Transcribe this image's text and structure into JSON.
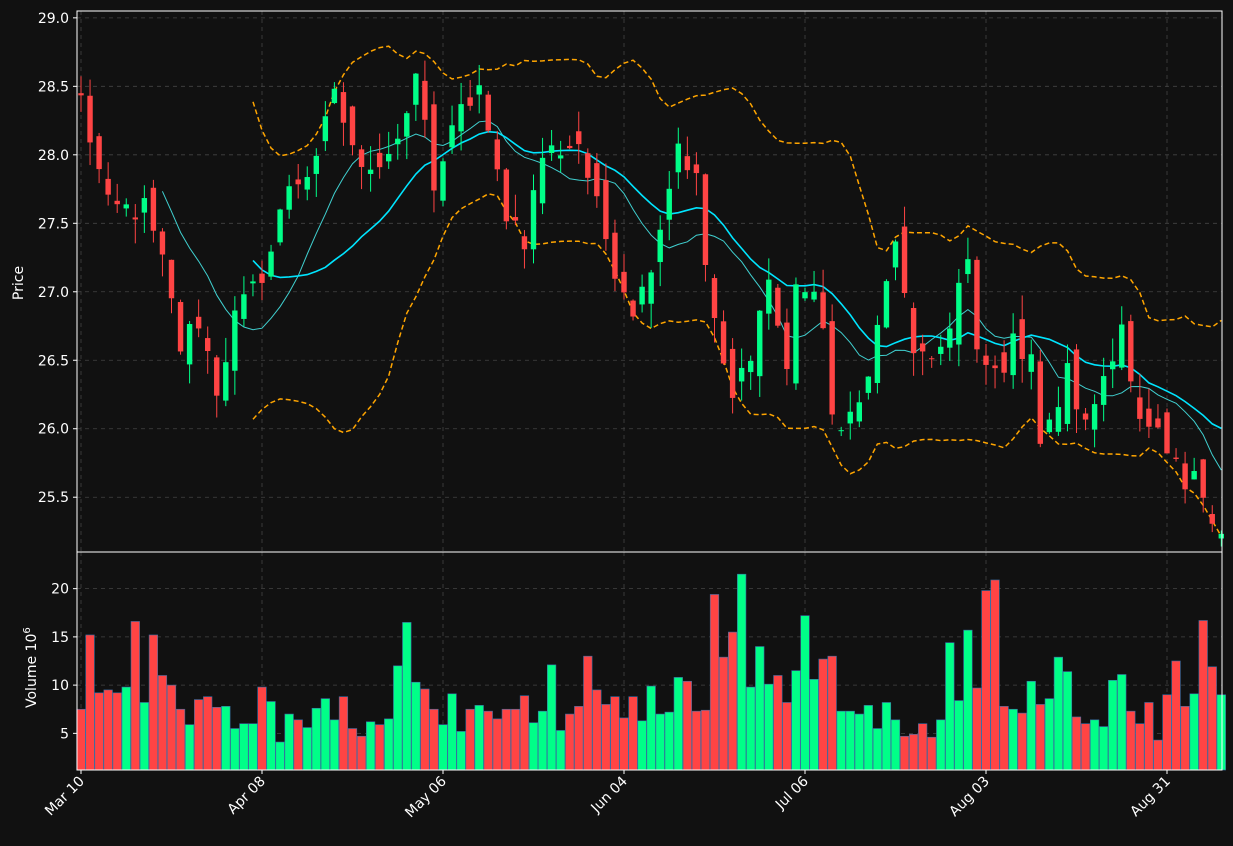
{
  "chart_data": {
    "type": "candlestick",
    "colors": {
      "background": "#111111",
      "up": "#00ff88",
      "down": "#ff4444",
      "ma_short": "#40d0d0",
      "ma_long": "#00e5ff",
      "bands": "#ffa500",
      "grid": "#444444",
      "text": "#ffffff"
    },
    "price_panel": {
      "ylabel": "Price",
      "ylim": [
        25.1,
        29.05
      ],
      "yticks": [
        "25.5",
        "26.0",
        "26.5",
        "27.0",
        "27.5",
        "28.0",
        "28.5",
        "29.0"
      ],
      "ytick_values": [
        25.5,
        26.0,
        26.5,
        27.0,
        27.5,
        28.0,
        28.5,
        29.0
      ],
      "grid": true
    },
    "volume_panel": {
      "ylabel": "Volume",
      "ylabel_exponent": "10",
      "ylabel_exponent_power": "6",
      "ylim": [
        1.2,
        23.8
      ],
      "yticks": [
        "5",
        "10",
        "15",
        "20"
      ],
      "ytick_values": [
        5,
        10,
        15,
        20
      ],
      "grid": true
    },
    "xticks": [
      {
        "index": 0,
        "label": "Mar 10"
      },
      {
        "index": 20,
        "label": "Apr 08"
      },
      {
        "index": 40,
        "label": "May 06"
      },
      {
        "index": 60,
        "label": "Jun 04"
      },
      {
        "index": 80,
        "label": "Jul 06"
      },
      {
        "index": 100,
        "label": "Aug 03"
      },
      {
        "index": 120,
        "label": "Aug 31"
      }
    ],
    "close_anchors": [
      [
        0,
        28.4
      ],
      [
        3,
        27.6
      ],
      [
        7,
        27.6
      ],
      [
        9,
        27.2
      ],
      [
        11,
        26.6
      ],
      [
        13,
        26.8
      ],
      [
        15,
        26.3
      ],
      [
        17,
        26.8
      ],
      [
        19,
        27.0
      ],
      [
        21,
        27.3
      ],
      [
        23,
        27.8
      ],
      [
        26,
        27.9
      ],
      [
        28,
        28.5
      ],
      [
        30,
        28.0
      ],
      [
        33,
        27.95
      ],
      [
        36,
        28.2
      ],
      [
        37,
        28.6
      ],
      [
        39,
        27.8
      ],
      [
        42,
        28.3
      ],
      [
        44,
        28.5
      ],
      [
        45,
        28.1
      ],
      [
        47,
        27.6
      ],
      [
        49,
        27.4
      ],
      [
        51,
        28.0
      ],
      [
        55,
        28.1
      ],
      [
        57,
        27.6
      ],
      [
        59,
        27.2
      ],
      [
        61,
        26.9
      ],
      [
        62,
        27.0
      ],
      [
        64,
        27.5
      ],
      [
        66,
        28.1
      ],
      [
        68,
        27.8
      ],
      [
        69,
        27.2
      ],
      [
        71,
        26.4
      ],
      [
        72,
        26.2
      ],
      [
        74,
        26.6
      ],
      [
        76,
        27.1
      ],
      [
        78,
        26.4
      ],
      [
        79,
        27.1
      ],
      [
        82,
        26.8
      ],
      [
        83,
        26.1
      ],
      [
        84,
        25.9
      ],
      [
        86,
        26.3
      ],
      [
        87,
        26.35
      ],
      [
        89,
        27.1
      ],
      [
        90,
        27.3
      ],
      [
        92,
        26.6
      ],
      [
        94,
        26.4
      ],
      [
        96,
        26.8
      ],
      [
        97,
        27.05
      ],
      [
        98,
        27.2
      ],
      [
        99,
        26.5
      ],
      [
        101,
        26.4
      ],
      [
        103,
        26.6
      ],
      [
        105,
        26.6
      ],
      [
        106,
        25.9
      ],
      [
        107,
        26.0
      ],
      [
        109,
        26.4
      ],
      [
        111,
        26.0
      ],
      [
        113,
        26.4
      ],
      [
        115,
        26.8
      ],
      [
        116,
        26.3
      ],
      [
        117,
        26.0
      ],
      [
        119,
        25.9
      ],
      [
        121,
        25.7
      ],
      [
        122,
        25.6
      ],
      [
        123,
        25.8
      ],
      [
        125,
        25.3
      ],
      [
        126,
        25.2
      ]
    ],
    "volume_anchors": [
      [
        0,
        7.5
      ],
      [
        1,
        15.2
      ],
      [
        2,
        9.2
      ],
      [
        3,
        9.5
      ],
      [
        4,
        9.2
      ],
      [
        5,
        9.8
      ],
      [
        6,
        16.6
      ],
      [
        7,
        8.2
      ],
      [
        8,
        15.2
      ],
      [
        9,
        11.0
      ],
      [
        10,
        10.0
      ],
      [
        11,
        7.5
      ],
      [
        12,
        5.9
      ],
      [
        13,
        8.5
      ],
      [
        14,
        8.8
      ],
      [
        15,
        7.7
      ],
      [
        16,
        7.8
      ],
      [
        17,
        5.5
      ],
      [
        18,
        6.0
      ],
      [
        19,
        6.0
      ],
      [
        20,
        9.8
      ],
      [
        21,
        8.3
      ],
      [
        22,
        4.1
      ],
      [
        23,
        7.0
      ],
      [
        24,
        6.4
      ],
      [
        25,
        5.6
      ],
      [
        26,
        7.6
      ],
      [
        27,
        8.6
      ],
      [
        28,
        6.4
      ],
      [
        29,
        8.8
      ],
      [
        30,
        5.5
      ],
      [
        31,
        4.7
      ],
      [
        32,
        6.2
      ],
      [
        33,
        5.9
      ],
      [
        34,
        6.5
      ],
      [
        35,
        12.0
      ],
      [
        36,
        16.5
      ],
      [
        37,
        10.3
      ],
      [
        38,
        9.6
      ],
      [
        39,
        7.5
      ],
      [
        40,
        5.9
      ],
      [
        41,
        9.1
      ],
      [
        42,
        5.2
      ],
      [
        43,
        7.5
      ],
      [
        44,
        7.9
      ],
      [
        45,
        7.3
      ],
      [
        46,
        6.5
      ],
      [
        47,
        7.5
      ],
      [
        48,
        7.5
      ],
      [
        49,
        8.9
      ],
      [
        50,
        6.1
      ],
      [
        51,
        7.3
      ],
      [
        52,
        12.1
      ],
      [
        53,
        5.3
      ],
      [
        54,
        7.0
      ],
      [
        55,
        7.8
      ],
      [
        56,
        13.0
      ],
      [
        57,
        9.5
      ],
      [
        58,
        8.0
      ],
      [
        59,
        8.8
      ],
      [
        60,
        6.6
      ],
      [
        61,
        8.8
      ],
      [
        62,
        6.3
      ],
      [
        63,
        9.9
      ],
      [
        64,
        7.0
      ],
      [
        65,
        7.2
      ],
      [
        66,
        10.8
      ],
      [
        67,
        10.4
      ],
      [
        68,
        7.3
      ],
      [
        69,
        7.4
      ],
      [
        70,
        19.4
      ],
      [
        71,
        12.9
      ],
      [
        72,
        15.5
      ],
      [
        73,
        21.5
      ],
      [
        74,
        9.8
      ],
      [
        75,
        14.0
      ],
      [
        76,
        10.1
      ],
      [
        77,
        11.0
      ],
      [
        78,
        8.2
      ],
      [
        79,
        11.5
      ],
      [
        80,
        17.2
      ],
      [
        81,
        10.6
      ],
      [
        82,
        12.7
      ],
      [
        83,
        13.0
      ],
      [
        84,
        7.3
      ],
      [
        85,
        7.3
      ],
      [
        86,
        7.0
      ],
      [
        87,
        7.9
      ],
      [
        88,
        5.5
      ],
      [
        89,
        8.2
      ],
      [
        90,
        6.4
      ],
      [
        91,
        4.7
      ],
      [
        92,
        4.9
      ],
      [
        93,
        6.0
      ],
      [
        94,
        4.6
      ],
      [
        95,
        6.4
      ],
      [
        96,
        14.4
      ],
      [
        97,
        8.4
      ],
      [
        98,
        15.7
      ],
      [
        99,
        9.7
      ],
      [
        100,
        19.8
      ],
      [
        101,
        20.9
      ],
      [
        102,
        7.8
      ],
      [
        103,
        7.5
      ],
      [
        104,
        7.1
      ],
      [
        105,
        10.4
      ],
      [
        106,
        8.0
      ],
      [
        107,
        8.6
      ],
      [
        108,
        12.9
      ],
      [
        109,
        11.4
      ],
      [
        110,
        6.7
      ],
      [
        111,
        6.0
      ],
      [
        112,
        6.4
      ],
      [
        113,
        5.7
      ],
      [
        114,
        10.5
      ],
      [
        115,
        11.1
      ],
      [
        116,
        7.3
      ],
      [
        117,
        6.0
      ],
      [
        118,
        8.2
      ],
      [
        119,
        4.3
      ],
      [
        120,
        9.0
      ],
      [
        121,
        12.5
      ],
      [
        122,
        7.8
      ],
      [
        123,
        9.1
      ],
      [
        124,
        16.7
      ],
      [
        125,
        11.9
      ],
      [
        126,
        9.0
      ]
    ],
    "num_sessions": 127,
    "first_open": 28.45,
    "moving_average_windows": [
      10,
      20
    ],
    "band_window": 20,
    "band_width_std": 2
  }
}
